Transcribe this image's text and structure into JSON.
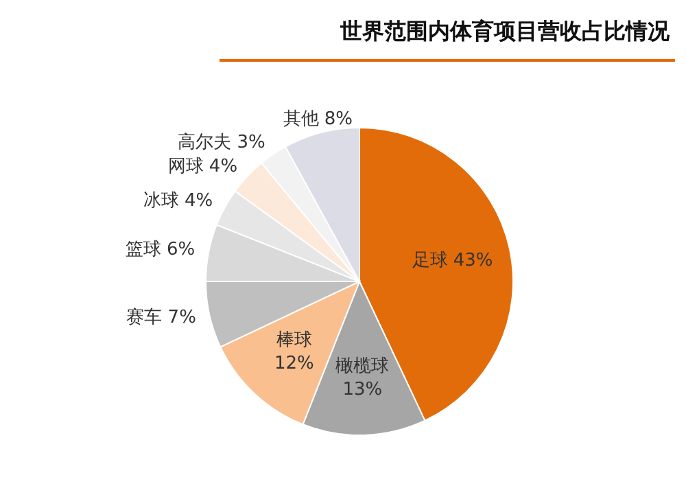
{
  "chart_data": {
    "type": "pie",
    "title": "世界范围内体育项目营收占比情况",
    "categories": [
      "足球",
      "橄榄球",
      "棒球",
      "赛车",
      "篮球",
      "冰球",
      "网球",
      "高尔夫",
      "其他"
    ],
    "values": [
      43,
      13,
      12,
      7,
      6,
      4,
      4,
      3,
      8
    ],
    "value_labels": [
      "43%",
      "13%",
      "12%",
      "7%",
      "6%",
      "4%",
      "4%",
      "3%",
      "8%"
    ],
    "colors": [
      "#e36c0a",
      "#a6a6a6",
      "#f9bf8f",
      "#bfbfbf",
      "#d9d9d9",
      "#e6e6e6",
      "#fde9d9",
      "#f2f2f2",
      "#dcdce6"
    ]
  }
}
